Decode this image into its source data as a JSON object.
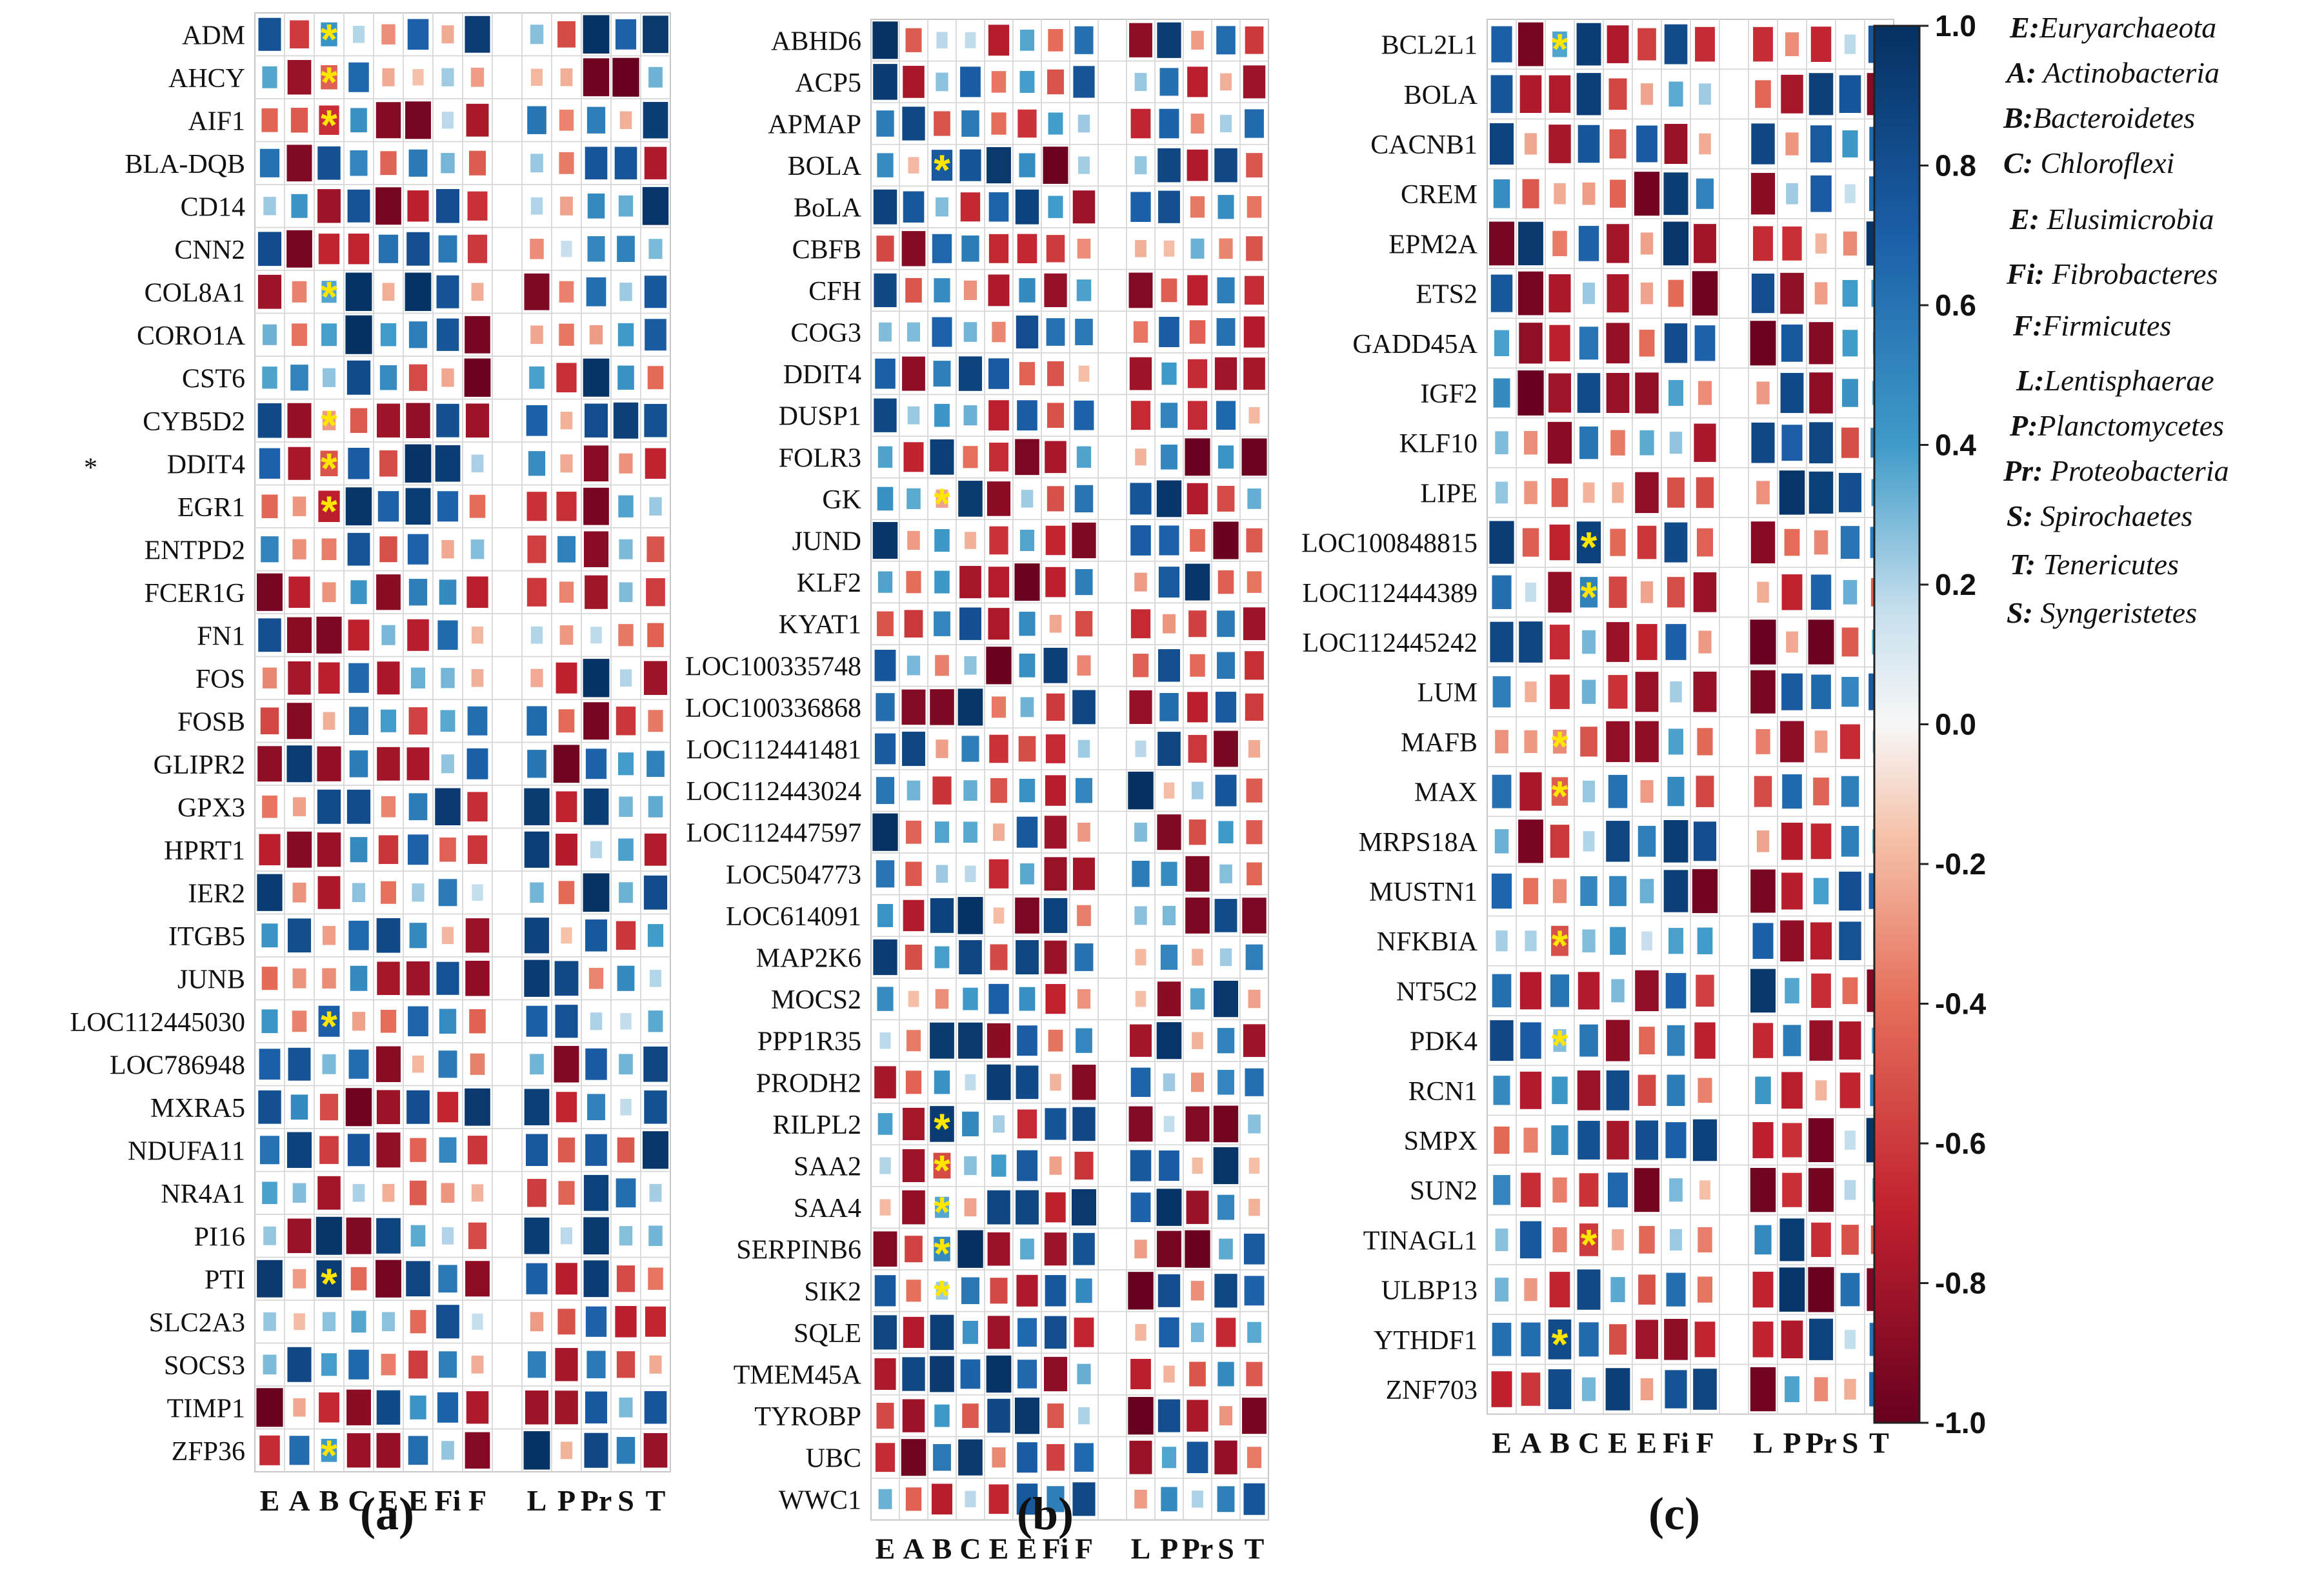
{
  "chart_data": [
    {
      "type": "heatmap",
      "panel_label": "(a)",
      "columns": [
        "E",
        "A",
        "B",
        "C",
        "E",
        "E",
        "Fi",
        "F",
        "",
        "L",
        "P",
        "Pr",
        "S",
        "T"
      ],
      "rows": [
        "ADM",
        "AHCY",
        "AIF1",
        "BLA-DQB",
        "CD14",
        "CNN2",
        "COL8A1",
        "CORO1A",
        "CST6",
        "CYB5D2",
        "DDIT4",
        "EGR1",
        "ENTPD2",
        "FCER1G",
        "FN1",
        "FOS",
        "FOSB",
        "GLIPR2",
        "GPX3",
        "HPRT1",
        "IER2",
        "ITGB5",
        "JUNB",
        "LOC112445030",
        "LOC786948",
        "MXRA5",
        "NDUFA11",
        "NR4A1",
        "PI16",
        "PTI",
        "SLC2A3",
        "SOCS3",
        "TIMP1",
        "ZFP36"
      ],
      "row_annotations": {
        "DDIT4": "*"
      },
      "significant": {
        "ADM": [
          2
        ],
        "AHCY": [
          2
        ],
        "AIF1": [
          2
        ],
        "COL8A1": [
          2
        ],
        "CYB5D2": [
          2
        ],
        "DDIT4": [
          2
        ],
        "EGR1": [
          2
        ],
        "LOC112445030": [
          2
        ],
        "PTI": [
          2
        ],
        "ZFP36": [
          2
        ]
      }
    },
    {
      "type": "heatmap",
      "panel_label": "(b)",
      "columns": [
        "E",
        "A",
        "B",
        "C",
        "E",
        "E",
        "Fi",
        "F",
        "",
        "L",
        "P",
        "Pr",
        "S",
        "T"
      ],
      "rows": [
        "ABHD6",
        "ACP5",
        "APMAP",
        "BOLA",
        "BoLA",
        "CBFB",
        "CFH",
        "COG3",
        "DDIT4",
        "DUSP1",
        "FOLR3",
        "GK",
        "JUND",
        "KLF2",
        "KYAT1",
        "LOC100335748",
        "LOC100336868",
        "LOC112441481",
        "LOC112443024",
        "LOC112447597",
        "LOC504773",
        "LOC614091",
        "MAP2K6",
        "MOCS2",
        "PPP1R35",
        "PRODH2",
        "RILPL2",
        "SAA2",
        "SAA4",
        "SERPINB6",
        "SIK2",
        "SQLE",
        "TMEM45A",
        "TYROBP",
        "UBC",
        "WWC1"
      ],
      "significant": {
        "BOLA": [
          2
        ],
        "GK": [
          2
        ],
        "RILPL2": [
          2
        ],
        "SAA2": [
          2
        ],
        "SAA4": [
          2
        ],
        "SERPINB6": [
          2
        ],
        "SIK2": [
          2
        ]
      }
    },
    {
      "type": "heatmap",
      "panel_label": "(c)",
      "columns": [
        "E",
        "A",
        "B",
        "C",
        "E",
        "E",
        "Fi",
        "F",
        "",
        "L",
        "P",
        "Pr",
        "S",
        "T"
      ],
      "rows": [
        "BCL2L1",
        "BOLA",
        "CACNB1",
        "CREM",
        "EPM2A",
        "ETS2",
        "GADD45A",
        "IGF2",
        "KLF10",
        "LIPE",
        "LOC100848815",
        "LOC112444389",
        "LOC112445242",
        "LUM",
        "MAFB",
        "MAX",
        "MRPS18A",
        "MUSTN1",
        "NFKBIA",
        "NT5C2",
        "PDK4",
        "RCN1",
        "SMPX",
        "SUN2",
        "TINAGL1",
        "ULBP13",
        "YTHDF1",
        "ZNF703"
      ],
      "significant": {
        "BCL2L1": [
          2
        ],
        "LOC100848815": [
          3
        ],
        "LOC112444389": [
          3
        ],
        "MAFB": [
          2
        ],
        "MAX": [
          2
        ],
        "NFKBIA": [
          2
        ],
        "PDK4": [
          2
        ],
        "TINAGL1": [
          3
        ],
        "YTHDF1": [
          2
        ]
      }
    }
  ],
  "colorbar": {
    "min": -1.0,
    "max": 1.0,
    "tick_labels": [
      "1.0",
      "0.8",
      "0.6",
      "0.4",
      "0.2",
      "0.0",
      "-0.2",
      "-0.4",
      "-0.6",
      "-0.8",
      "-1.0"
    ],
    "negative_color": "#67001f",
    "zero_color": "#ffffff",
    "positive_color": "#053061"
  },
  "legend": [
    {
      "key": "E:",
      "name": "Euryarchaeota"
    },
    {
      "key": "A:",
      "name": " Actinobacteria"
    },
    {
      "key": "B:",
      "name": "Bacteroidetes"
    },
    {
      "key": "C:",
      "name": " Chloroflexi"
    },
    {
      "key": "E:",
      "name": " Elusimicrobia"
    },
    {
      "key": "Fi:",
      "name": " Fibrobacteres"
    },
    {
      "key": "F:",
      "name": "Firmicutes"
    },
    {
      "key": "L:",
      "name": "Lentisphaerae"
    },
    {
      "key": "P:",
      "name": "Planctomycetes"
    },
    {
      "key": "Pr:",
      "name": " Proteobacteria"
    },
    {
      "key": "S:",
      "name": " Spirochaetes"
    },
    {
      "key": "T:",
      "name": " Tenericutes"
    },
    {
      "key": "S:",
      "name": " Syngeristetes"
    }
  ],
  "colors": {
    "significance_star": "#ffe600",
    "grid": "#bfbfbf"
  }
}
